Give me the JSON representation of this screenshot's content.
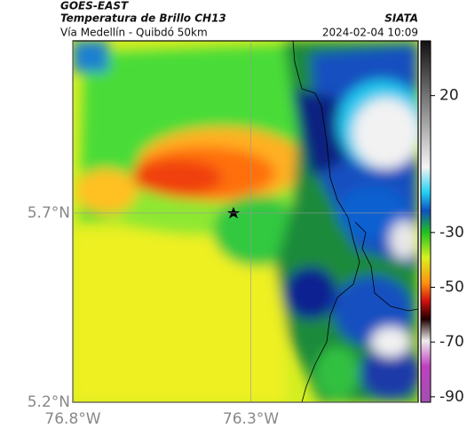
{
  "header": {
    "satellite": "GOES-EAST",
    "product": "Temperatura de Brillo CH13",
    "source": "SIATA",
    "region": "Vía Medellín - Quibdó 50km",
    "timestamp": "2024-02-04 10:09"
  },
  "map": {
    "xlim": [
      -76.8,
      -75.83
    ],
    "ylim": [
      5.2,
      6.155
    ],
    "xticks": [
      {
        "value": -76.8,
        "label": "76.8°W"
      },
      {
        "value": -76.3,
        "label": "76.3°W"
      }
    ],
    "yticks": [
      {
        "value": 5.7,
        "label": "5.7°N"
      },
      {
        "value": 5.2,
        "label": "5.2°N"
      }
    ]
  },
  "colorbar": {
    "lim": [
      -92,
      40
    ],
    "ticks": [
      20,
      -30,
      -50,
      -70,
      -90
    ]
  }
}
